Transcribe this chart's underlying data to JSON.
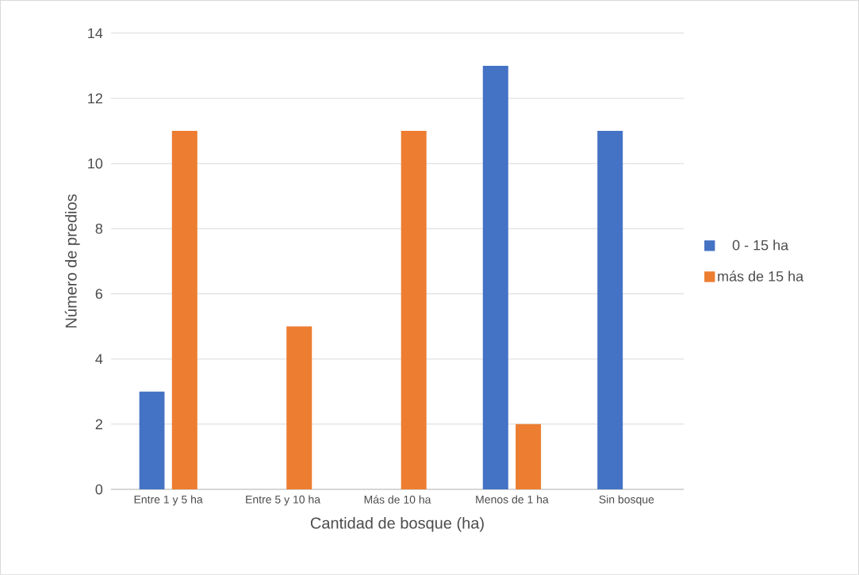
{
  "chart_data": {
    "type": "bar",
    "xlabel": "Cantidad de bosque (ha)",
    "ylabel": "Número de predios",
    "categories": [
      "Entre 1 y 5 ha",
      "Entre 5 y 10 ha",
      "Más de 10 ha",
      "Menos de 1 ha",
      "Sin bosque"
    ],
    "series": [
      {
        "name": "0 - 15 ha",
        "color": "#4472c4",
        "values": [
          3,
          null,
          null,
          13,
          11
        ]
      },
      {
        "name": "más de 15 ha",
        "color": "#ed7d31",
        "values": [
          11,
          5,
          11,
          2,
          null
        ]
      }
    ],
    "ylim": [
      0,
      14
    ],
    "yticks": [
      0,
      2,
      4,
      6,
      8,
      10,
      12,
      14
    ],
    "grid": "y",
    "legend": "right"
  }
}
